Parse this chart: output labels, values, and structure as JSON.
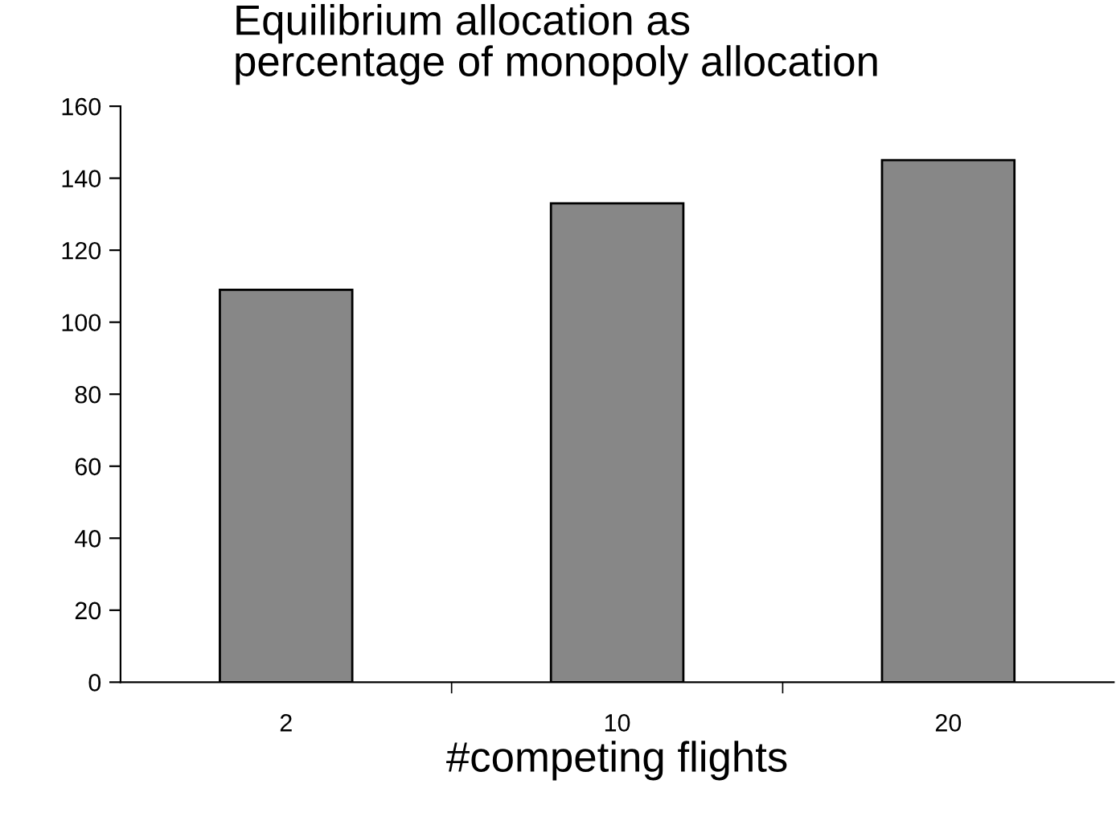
{
  "chart_data": {
    "type": "bar",
    "title": "Equilibrium allocation as\npercentage of monopoly allocation",
    "xlabel": "#competing flights",
    "categories": [
      "2",
      "10",
      "20"
    ],
    "values": [
      109,
      133,
      145
    ],
    "color": "#878787",
    "ylim": [
      0,
      160
    ],
    "yticks": [
      0,
      20,
      40,
      60,
      80,
      100,
      120,
      140,
      160
    ],
    "grid": false,
    "legend": false
  }
}
